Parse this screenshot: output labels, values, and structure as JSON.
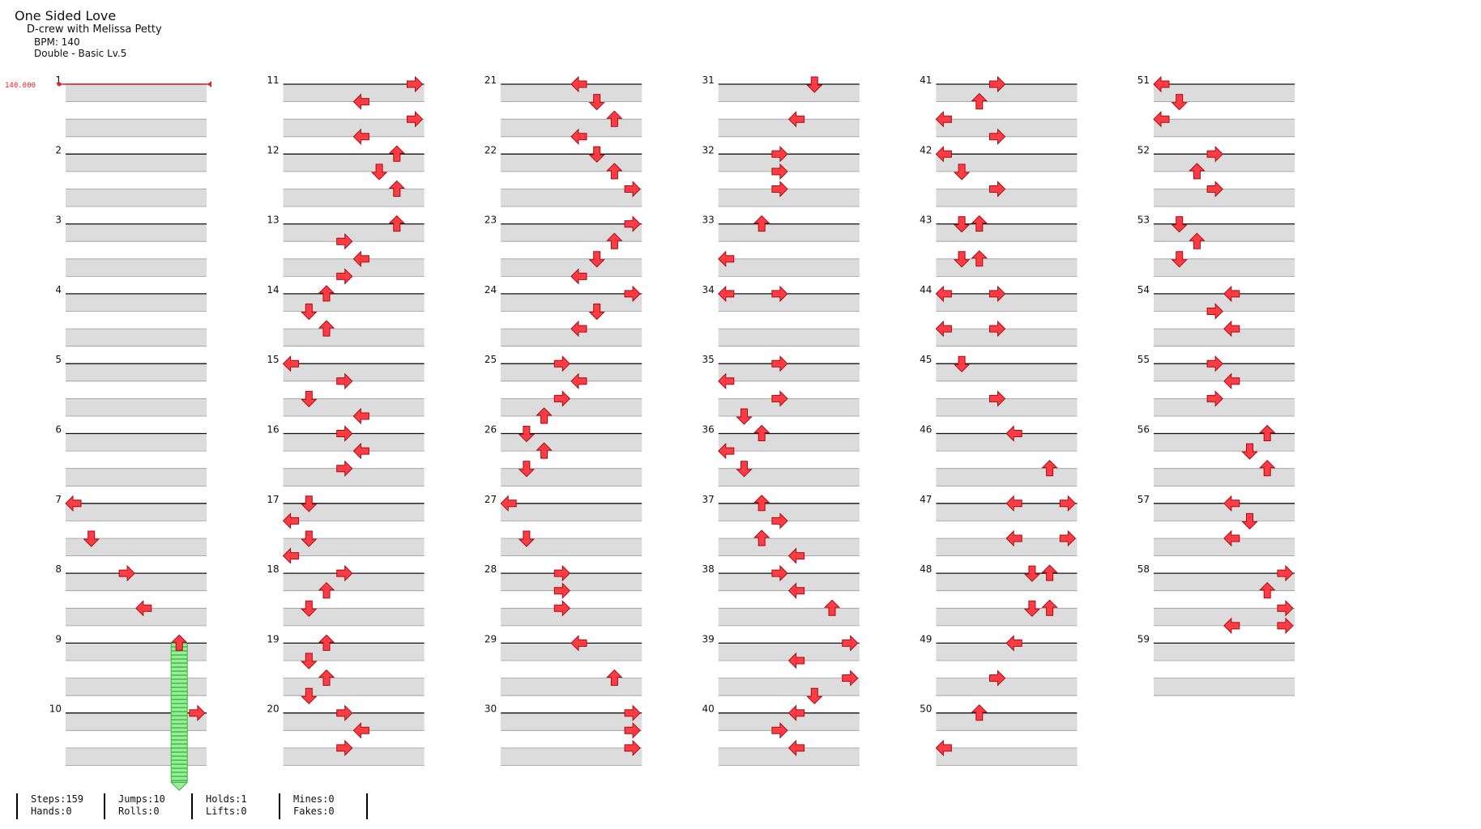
{
  "song": {
    "title": "One Sided Love",
    "artist": "D-crew with Melissa Petty",
    "bpm": "BPM: 140",
    "difficulty": "Double - Basic Lv.5"
  },
  "bpm_marker": "140.000",
  "colors": {
    "arrow_fill": "#ff3b44",
    "arrow_stroke": "#a80a14",
    "hold_fill": "#7fe07f",
    "beat_band": "#dcdcdc"
  },
  "measures": [
    {
      "n": 1,
      "notes": []
    },
    {
      "n": 2,
      "notes": []
    },
    {
      "n": 3,
      "notes": []
    },
    {
      "n": 4,
      "notes": []
    },
    {
      "n": 5,
      "notes": []
    },
    {
      "n": 6,
      "notes": []
    },
    {
      "n": 7,
      "notes": [
        {
          "b": 0,
          "c": 0,
          "d": "left"
        },
        {
          "b": 1,
          "c": 1,
          "d": "down"
        }
      ]
    },
    {
      "n": 8,
      "notes": [
        {
          "b": 0,
          "c": 3,
          "d": "right"
        },
        {
          "b": 1,
          "c": 4,
          "d": "left"
        }
      ]
    },
    {
      "n": 9,
      "notes": [
        {
          "b": 0,
          "c": 6,
          "d": "up",
          "hold": 4
        }
      ]
    },
    {
      "n": 10,
      "notes": [
        {
          "b": 0,
          "c": 7,
          "d": "right"
        }
      ]
    },
    {
      "n": 11,
      "notes": [
        {
          "b": 0,
          "c": 7,
          "d": "right"
        },
        {
          "b": 0.5,
          "c": 4,
          "d": "left"
        },
        {
          "b": 1,
          "c": 7,
          "d": "right"
        },
        {
          "b": 1.5,
          "c": 4,
          "d": "left"
        }
      ]
    },
    {
      "n": 12,
      "notes": [
        {
          "b": 0,
          "c": 6,
          "d": "up"
        },
        {
          "b": 0.5,
          "c": 5,
          "d": "down"
        },
        {
          "b": 1,
          "c": 6,
          "d": "up"
        }
      ]
    },
    {
      "n": 13,
      "notes": [
        {
          "b": 0,
          "c": 6,
          "d": "up"
        },
        {
          "b": 0.5,
          "c": 3,
          "d": "right"
        },
        {
          "b": 1,
          "c": 4,
          "d": "left"
        },
        {
          "b": 1.5,
          "c": 3,
          "d": "right"
        }
      ]
    },
    {
      "n": 14,
      "notes": [
        {
          "b": 0,
          "c": 2,
          "d": "up"
        },
        {
          "b": 0.5,
          "c": 1,
          "d": "down"
        },
        {
          "b": 1,
          "c": 2,
          "d": "up"
        }
      ]
    },
    {
      "n": 15,
      "notes": [
        {
          "b": 0,
          "c": 0,
          "d": "left"
        },
        {
          "b": 0.5,
          "c": 3,
          "d": "right"
        },
        {
          "b": 1,
          "c": 1,
          "d": "down"
        },
        {
          "b": 1.5,
          "c": 4,
          "d": "left"
        }
      ]
    },
    {
      "n": 16,
      "notes": [
        {
          "b": 0,
          "c": 3,
          "d": "right"
        },
        {
          "b": 0.5,
          "c": 4,
          "d": "left"
        },
        {
          "b": 1,
          "c": 3,
          "d": "right"
        }
      ]
    },
    {
      "n": 17,
      "notes": [
        {
          "b": 0,
          "c": 1,
          "d": "down"
        },
        {
          "b": 0.5,
          "c": 0,
          "d": "left"
        },
        {
          "b": 1,
          "c": 1,
          "d": "down"
        },
        {
          "b": 1.5,
          "c": 0,
          "d": "left"
        }
      ]
    },
    {
      "n": 18,
      "notes": [
        {
          "b": 0,
          "c": 3,
          "d": "right"
        },
        {
          "b": 0.5,
          "c": 2,
          "d": "up"
        },
        {
          "b": 1,
          "c": 1,
          "d": "down"
        }
      ]
    },
    {
      "n": 19,
      "notes": [
        {
          "b": 0,
          "c": 2,
          "d": "up"
        },
        {
          "b": 0.5,
          "c": 1,
          "d": "down"
        },
        {
          "b": 1,
          "c": 2,
          "d": "up"
        },
        {
          "b": 1.5,
          "c": 1,
          "d": "down"
        }
      ]
    },
    {
      "n": 20,
      "notes": [
        {
          "b": 0,
          "c": 3,
          "d": "right"
        },
        {
          "b": 0.5,
          "c": 4,
          "d": "left"
        },
        {
          "b": 1,
          "c": 3,
          "d": "right"
        }
      ]
    },
    {
      "n": 21,
      "notes": [
        {
          "b": 0,
          "c": 4,
          "d": "left"
        },
        {
          "b": 0.5,
          "c": 5,
          "d": "down"
        },
        {
          "b": 1,
          "c": 6,
          "d": "up"
        },
        {
          "b": 1.5,
          "c": 4,
          "d": "left"
        }
      ]
    },
    {
      "n": 22,
      "notes": [
        {
          "b": 0,
          "c": 5,
          "d": "down"
        },
        {
          "b": 0.5,
          "c": 6,
          "d": "up"
        },
        {
          "b": 1,
          "c": 7,
          "d": "right"
        }
      ]
    },
    {
      "n": 23,
      "notes": [
        {
          "b": 0,
          "c": 7,
          "d": "right"
        },
        {
          "b": 0.5,
          "c": 6,
          "d": "up"
        },
        {
          "b": 1,
          "c": 5,
          "d": "down"
        },
        {
          "b": 1.5,
          "c": 4,
          "d": "left"
        }
      ]
    },
    {
      "n": 24,
      "notes": [
        {
          "b": 0,
          "c": 7,
          "d": "right"
        },
        {
          "b": 0.5,
          "c": 5,
          "d": "down"
        },
        {
          "b": 1,
          "c": 4,
          "d": "left"
        }
      ]
    },
    {
      "n": 25,
      "notes": [
        {
          "b": 0,
          "c": 3,
          "d": "right"
        },
        {
          "b": 0.5,
          "c": 4,
          "d": "left"
        },
        {
          "b": 1,
          "c": 3,
          "d": "right"
        },
        {
          "b": 1.5,
          "c": 2,
          "d": "up"
        }
      ]
    },
    {
      "n": 26,
      "notes": [
        {
          "b": 0,
          "c": 1,
          "d": "down"
        },
        {
          "b": 0.5,
          "c": 2,
          "d": "up"
        },
        {
          "b": 1,
          "c": 1,
          "d": "down"
        }
      ]
    },
    {
      "n": 27,
      "notes": [
        {
          "b": 0,
          "c": 0,
          "d": "left"
        },
        {
          "b": 1,
          "c": 1,
          "d": "down"
        }
      ]
    },
    {
      "n": 28,
      "notes": [
        {
          "b": 0,
          "c": 3,
          "d": "right"
        },
        {
          "b": 0.5,
          "c": 3,
          "d": "right"
        },
        {
          "b": 1,
          "c": 3,
          "d": "right"
        }
      ]
    },
    {
      "n": 29,
      "notes": [
        {
          "b": 0,
          "c": 4,
          "d": "left"
        },
        {
          "b": 1,
          "c": 6,
          "d": "up"
        }
      ]
    },
    {
      "n": 30,
      "notes": [
        {
          "b": 0,
          "c": 7,
          "d": "right"
        },
        {
          "b": 0.5,
          "c": 7,
          "d": "right"
        },
        {
          "b": 1,
          "c": 7,
          "d": "right"
        }
      ]
    },
    {
      "n": 31,
      "notes": [
        {
          "b": 0,
          "c": 5,
          "d": "down"
        },
        {
          "b": 1,
          "c": 4,
          "d": "left"
        }
      ]
    },
    {
      "n": 32,
      "notes": [
        {
          "b": 0,
          "c": 3,
          "d": "right"
        },
        {
          "b": 0.5,
          "c": 3,
          "d": "right"
        },
        {
          "b": 1,
          "c": 3,
          "d": "right"
        }
      ]
    },
    {
      "n": 33,
      "notes": [
        {
          "b": 0,
          "c": 2,
          "d": "up"
        },
        {
          "b": 1,
          "c": 0,
          "d": "left"
        }
      ]
    },
    {
      "n": 34,
      "notes": [
        {
          "b": 0,
          "c": 0,
          "d": "left"
        },
        {
          "b": 0,
          "c": 3,
          "d": "right"
        }
      ]
    },
    {
      "n": 35,
      "notes": [
        {
          "b": 0,
          "c": 3,
          "d": "right"
        },
        {
          "b": 0.5,
          "c": 0,
          "d": "left"
        },
        {
          "b": 1,
          "c": 3,
          "d": "right"
        },
        {
          "b": 1.5,
          "c": 1,
          "d": "down"
        }
      ]
    },
    {
      "n": 36,
      "notes": [
        {
          "b": 0,
          "c": 2,
          "d": "up"
        },
        {
          "b": 0.5,
          "c": 0,
          "d": "left"
        },
        {
          "b": 1,
          "c": 1,
          "d": "down"
        }
      ]
    },
    {
      "n": 37,
      "notes": [
        {
          "b": 0,
          "c": 2,
          "d": "up"
        },
        {
          "b": 0.5,
          "c": 3,
          "d": "right"
        },
        {
          "b": 1,
          "c": 2,
          "d": "up"
        },
        {
          "b": 1.5,
          "c": 4,
          "d": "left"
        }
      ]
    },
    {
      "n": 38,
      "notes": [
        {
          "b": 0,
          "c": 3,
          "d": "right"
        },
        {
          "b": 0.5,
          "c": 4,
          "d": "left"
        },
        {
          "b": 1,
          "c": 6,
          "d": "up"
        }
      ]
    },
    {
      "n": 39,
      "notes": [
        {
          "b": 0,
          "c": 7,
          "d": "right"
        },
        {
          "b": 0.5,
          "c": 4,
          "d": "left"
        },
        {
          "b": 1,
          "c": 7,
          "d": "right"
        },
        {
          "b": 1.5,
          "c": 5,
          "d": "down"
        }
      ]
    },
    {
      "n": 40,
      "notes": [
        {
          "b": 0,
          "c": 4,
          "d": "left"
        },
        {
          "b": 0.5,
          "c": 3,
          "d": "right"
        },
        {
          "b": 1,
          "c": 4,
          "d": "left"
        }
      ]
    },
    {
      "n": 41,
      "notes": [
        {
          "b": 0,
          "c": 3,
          "d": "right"
        },
        {
          "b": 0.5,
          "c": 2,
          "d": "up"
        },
        {
          "b": 1,
          "c": 0,
          "d": "left"
        },
        {
          "b": 1.5,
          "c": 3,
          "d": "right"
        }
      ]
    },
    {
      "n": 42,
      "notes": [
        {
          "b": 0,
          "c": 0,
          "d": "left"
        },
        {
          "b": 0.5,
          "c": 1,
          "d": "down"
        },
        {
          "b": 1,
          "c": 3,
          "d": "right"
        }
      ]
    },
    {
      "n": 43,
      "notes": [
        {
          "b": 0,
          "c": 1,
          "d": "down"
        },
        {
          "b": 0,
          "c": 2,
          "d": "up"
        },
        {
          "b": 1,
          "c": 1,
          "d": "down"
        },
        {
          "b": 1,
          "c": 2,
          "d": "up"
        }
      ]
    },
    {
      "n": 44,
      "notes": [
        {
          "b": 0,
          "c": 0,
          "d": "left"
        },
        {
          "b": 0,
          "c": 3,
          "d": "right"
        },
        {
          "b": 1,
          "c": 0,
          "d": "left"
        },
        {
          "b": 1,
          "c": 3,
          "d": "right"
        }
      ]
    },
    {
      "n": 45,
      "notes": [
        {
          "b": 0,
          "c": 1,
          "d": "down"
        },
        {
          "b": 1,
          "c": 3,
          "d": "right"
        }
      ]
    },
    {
      "n": 46,
      "notes": [
        {
          "b": 0,
          "c": 4,
          "d": "left"
        },
        {
          "b": 1,
          "c": 6,
          "d": "up"
        }
      ]
    },
    {
      "n": 47,
      "notes": [
        {
          "b": 0,
          "c": 4,
          "d": "left"
        },
        {
          "b": 0,
          "c": 7,
          "d": "right"
        },
        {
          "b": 1,
          "c": 4,
          "d": "left"
        },
        {
          "b": 1,
          "c": 7,
          "d": "right"
        }
      ]
    },
    {
      "n": 48,
      "notes": [
        {
          "b": 0,
          "c": 5,
          "d": "down"
        },
        {
          "b": 0,
          "c": 6,
          "d": "up"
        },
        {
          "b": 1,
          "c": 5,
          "d": "down"
        },
        {
          "b": 1,
          "c": 6,
          "d": "up"
        }
      ]
    },
    {
      "n": 49,
      "notes": [
        {
          "b": 0,
          "c": 4,
          "d": "left"
        },
        {
          "b": 1,
          "c": 3,
          "d": "right"
        }
      ]
    },
    {
      "n": 50,
      "notes": [
        {
          "b": 0,
          "c": 2,
          "d": "up"
        },
        {
          "b": 1,
          "c": 0,
          "d": "left"
        }
      ]
    },
    {
      "n": 51,
      "notes": [
        {
          "b": 0,
          "c": 0,
          "d": "left"
        },
        {
          "b": 0.5,
          "c": 1,
          "d": "down"
        },
        {
          "b": 1,
          "c": 0,
          "d": "left"
        }
      ]
    },
    {
      "n": 52,
      "notes": [
        {
          "b": 0,
          "c": 3,
          "d": "right"
        },
        {
          "b": 0.5,
          "c": 2,
          "d": "up"
        },
        {
          "b": 1,
          "c": 3,
          "d": "right"
        }
      ]
    },
    {
      "n": 53,
      "notes": [
        {
          "b": 0,
          "c": 1,
          "d": "down"
        },
        {
          "b": 0.5,
          "c": 2,
          "d": "up"
        },
        {
          "b": 1,
          "c": 1,
          "d": "down"
        }
      ]
    },
    {
      "n": 54,
      "notes": [
        {
          "b": 0,
          "c": 4,
          "d": "left"
        },
        {
          "b": 0.5,
          "c": 3,
          "d": "right"
        },
        {
          "b": 1,
          "c": 4,
          "d": "left"
        }
      ]
    },
    {
      "n": 55,
      "notes": [
        {
          "b": 0,
          "c": 3,
          "d": "right"
        },
        {
          "b": 0.5,
          "c": 4,
          "d": "left"
        },
        {
          "b": 1,
          "c": 3,
          "d": "right"
        }
      ]
    },
    {
      "n": 56,
      "notes": [
        {
          "b": 0,
          "c": 6,
          "d": "up"
        },
        {
          "b": 0.5,
          "c": 5,
          "d": "down"
        },
        {
          "b": 1,
          "c": 6,
          "d": "up"
        }
      ]
    },
    {
      "n": 57,
      "notes": [
        {
          "b": 0,
          "c": 4,
          "d": "left"
        },
        {
          "b": 0.5,
          "c": 5,
          "d": "down"
        },
        {
          "b": 1,
          "c": 4,
          "d": "left"
        }
      ]
    },
    {
      "n": 58,
      "notes": [
        {
          "b": 0,
          "c": 7,
          "d": "right"
        },
        {
          "b": 0.5,
          "c": 6,
          "d": "up"
        },
        {
          "b": 1,
          "c": 7,
          "d": "right"
        },
        {
          "b": 1.5,
          "c": 4,
          "d": "left"
        },
        {
          "b": 1.5,
          "c": 7,
          "d": "right"
        }
      ]
    },
    {
      "n": 59,
      "notes": []
    }
  ],
  "stats": [
    {
      "top": "Steps:159",
      "bottom": "Hands:0"
    },
    {
      "top": "Jumps:10",
      "bottom": "Rolls:0"
    },
    {
      "top": "Holds:1",
      "bottom": "Lifts:0"
    },
    {
      "top": "Mines:0",
      "bottom": "Fakes:0"
    }
  ]
}
